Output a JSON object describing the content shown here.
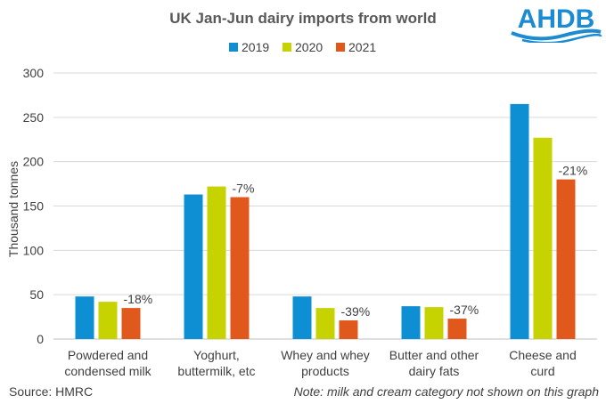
{
  "logo": {
    "text": "AHDB",
    "color": "#1c8bd1"
  },
  "footer": {
    "source": "Source: HMRC",
    "note": "Note: milk and cream category not shown on this graph"
  },
  "chart_data": {
    "type": "bar",
    "title": "UK Jan-Jun dairy imports from world",
    "xlabel": "",
    "ylabel": "Thousand tonnes",
    "ylim": [
      0,
      300
    ],
    "yticks": [
      0,
      50,
      100,
      150,
      200,
      250,
      300
    ],
    "grid": true,
    "legend_position": "top",
    "categories": [
      [
        "Powdered and",
        "condensed milk"
      ],
      [
        "Yoghurt,",
        "buttermilk, etc"
      ],
      [
        "Whey and whey",
        "products"
      ],
      [
        "Butter and other",
        "dairy fats"
      ],
      [
        "Cheese and",
        "curd"
      ]
    ],
    "series": [
      {
        "name": "2019",
        "color": "#0f8fd3",
        "values": [
          48,
          163,
          48,
          37,
          265
        ]
      },
      {
        "name": "2020",
        "color": "#c7d300",
        "values": [
          42,
          172,
          35,
          36,
          227
        ]
      },
      {
        "name": "2021",
        "color": "#e0581c",
        "values": [
          35,
          160,
          21,
          23,
          180
        ]
      }
    ],
    "annotations": [
      "-18%",
      "-7%",
      "-39%",
      "-37%",
      "-21%"
    ]
  }
}
